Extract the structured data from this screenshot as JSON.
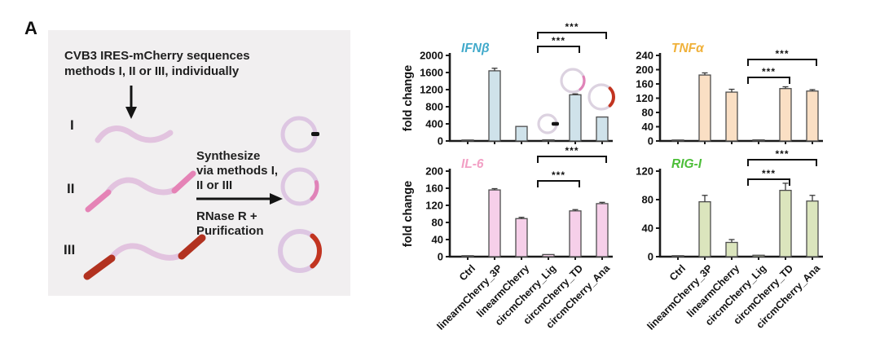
{
  "panel_label": "A",
  "panel_a": {
    "title_lines": [
      "CVB3 IRES-mCherry sequences",
      "methods I, II or III, individually"
    ],
    "method_labels": [
      "I",
      "II",
      "III"
    ],
    "synthesize_lines": [
      "Synthesize",
      "via methods I,",
      "II or III"
    ],
    "rnase_lines": [
      "RNase R +",
      "Purification"
    ]
  },
  "colors": {
    "panel_bg": "#f1eff0",
    "rna_body": "#e2c3df",
    "rna_end_pink": "#e583b6",
    "rna_end_red": "#b23220",
    "ring": "#ddc6e2",
    "nick": "#141414",
    "arc_pink": "#e083b8",
    "arc_red": "#c23420",
    "axis": "#1a1a1a"
  },
  "categories": [
    "Ctrl",
    "linearmCherry_3P",
    "linearmCherry",
    "circmCherry_Lig",
    "circmCherry_TD",
    "circmCherry_Ana"
  ],
  "chart_data": [
    {
      "id": "ifnb",
      "type": "bar",
      "title": "IFNβ",
      "title_color": "#42aacb",
      "ylabel": "fold change",
      "ylim": [
        0,
        2000
      ],
      "yticks": [
        0,
        400,
        800,
        1200,
        1600,
        2000
      ],
      "bar_fill": "#cfe2ea",
      "bar_stroke": "#4d4d4d",
      "values": [
        3,
        1640,
        340,
        25,
        1080,
        560
      ],
      "errors": [
        0,
        60,
        0,
        0,
        20,
        0
      ],
      "significance": [
        {
          "from": 3,
          "to": 5,
          "y": 12,
          "label": "***"
        },
        {
          "from": 3,
          "to": 4,
          "y": 29,
          "label": "***"
        }
      ],
      "show_xlabels": false,
      "icons": [
        {
          "name": "circrna-nick-mini-icon",
          "cx": 182,
          "cy": 124,
          "r": 11,
          "arc": "dot"
        },
        {
          "name": "circrna-pink-mini-icon",
          "cx": 213,
          "cy": 71,
          "r": 14,
          "arc": "pink"
        },
        {
          "name": "circrna-red-mini-icon",
          "cx": 248,
          "cy": 91,
          "r": 15,
          "arc": "red"
        }
      ]
    },
    {
      "id": "tnfa",
      "type": "bar",
      "title": "TNFα",
      "title_color": "#f0b13a",
      "ylabel": "",
      "ylim": [
        0,
        240
      ],
      "yticks": [
        0,
        40,
        80,
        120,
        160,
        200,
        240
      ],
      "bar_fill": "#fadfc4",
      "bar_stroke": "#4d4d4d",
      "values": [
        2,
        185,
        137,
        3,
        147,
        140
      ],
      "errors": [
        0,
        6,
        8,
        0,
        5,
        4
      ],
      "significance": [
        {
          "from": 3,
          "to": 5,
          "y": 45,
          "label": "***"
        },
        {
          "from": 3,
          "to": 4,
          "y": 67,
          "label": "***"
        }
      ],
      "show_xlabels": false,
      "icons": []
    },
    {
      "id": "il6",
      "type": "bar",
      "title": "IL-6",
      "title_color": "#f2a0c5",
      "ylabel": "fold change",
      "ylim": [
        0,
        200
      ],
      "yticks": [
        0,
        40,
        80,
        120,
        160,
        200
      ],
      "bar_fill": "#f6cfe9",
      "bar_stroke": "#4d4d4d",
      "values": [
        1,
        156,
        89,
        5,
        107,
        124
      ],
      "errors": [
        0,
        3,
        3,
        0,
        3,
        3
      ],
      "significance": [
        {
          "from": 3,
          "to": 5,
          "y": 22,
          "label": "***"
        },
        {
          "from": 3,
          "to": 4,
          "y": 52,
          "label": "***"
        }
      ],
      "show_xlabels": true,
      "icons": []
    },
    {
      "id": "rigi",
      "type": "bar",
      "title": "RIG-I",
      "title_color": "#4cbe38",
      "ylabel": "",
      "ylim": [
        0,
        120
      ],
      "yticks": [
        0,
        40,
        80,
        120
      ],
      "bar_fill": "#dbe5bd",
      "bar_stroke": "#4d4d4d",
      "values": [
        1,
        77,
        20,
        2,
        93,
        78
      ],
      "errors": [
        0,
        9,
        4,
        0,
        10,
        8
      ],
      "significance": [
        {
          "from": 3,
          "to": 5,
          "y": 26,
          "label": "***"
        },
        {
          "from": 3,
          "to": 4,
          "y": 50,
          "label": "***"
        }
      ],
      "show_xlabels": true,
      "icons": []
    }
  ]
}
